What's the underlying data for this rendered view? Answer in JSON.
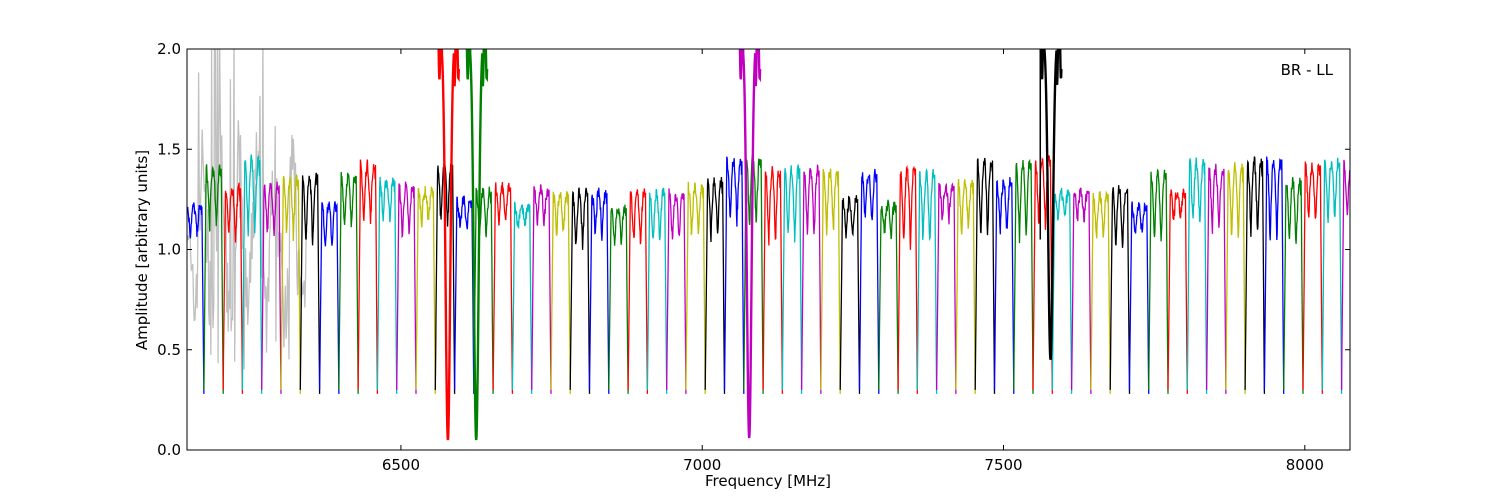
{
  "chart_data": {
    "type": "line",
    "title": "",
    "xlabel": "Frequency [MHz]",
    "ylabel": "Amplitude [arbitrary units]",
    "xlim": [
      6145,
      8075
    ],
    "ylim": [
      0.0,
      2.0
    ],
    "xticks": [
      6500,
      7000,
      7500,
      8000
    ],
    "yticks": [
      0.0,
      0.5,
      1.0,
      1.5,
      2.0
    ],
    "xtick_labels": [
      "6500",
      "7000",
      "7500",
      "8000"
    ],
    "ytick_labels": [
      "0.0",
      "0.5",
      "1.0",
      "1.5",
      "2.0"
    ],
    "annotation": "BR - LL",
    "grid": false,
    "vline_x": 7561,
    "channel_width_mhz": 32,
    "color_cycle": [
      "#0000ff",
      "#008000",
      "#ff0000",
      "#00bfbf",
      "#bf00bf",
      "#bfbf00",
      "#000000"
    ],
    "noisy_overlay_color": "#c0c0c0",
    "noisy_overlay_x": [
      6145,
      6345
    ],
    "strong_dips": [
      {
        "x": 6578,
        "depth": 0.05,
        "color": "#ff0000"
      },
      {
        "x": 6625,
        "depth": 0.05,
        "color": "#008000"
      },
      {
        "x": 7078,
        "depth": 0.06,
        "color": "#bf00bf"
      },
      {
        "x": 7578,
        "depth": 0.45,
        "color": "#000000"
      }
    ],
    "series_count": 61
  }
}
